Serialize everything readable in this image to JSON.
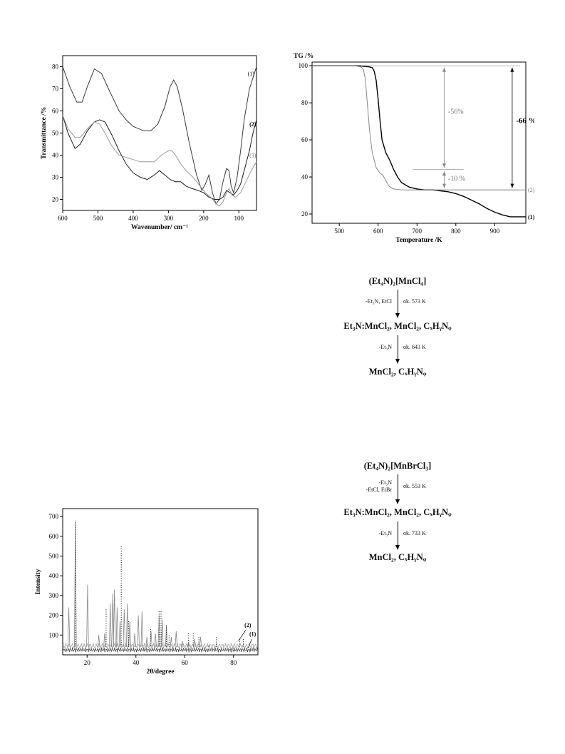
{
  "chart_data": [
    {
      "id": "ir",
      "type": "line",
      "xlabel": "Wavenumber/ cm⁻¹",
      "ylabel": "Transmittance /%",
      "xlim": [
        600,
        50
      ],
      "ylim": [
        15,
        85
      ],
      "xticks": [
        "600",
        "500",
        "400",
        "300",
        "200",
        "100"
      ],
      "yticks": [
        "20",
        "30",
        "40",
        "50",
        "60",
        "70",
        "80"
      ],
      "series": [
        {
          "name": "(1)",
          "color": "#3a3a3a",
          "x": [
            600,
            580,
            560,
            545,
            530,
            510,
            490,
            470,
            440,
            420,
            400,
            370,
            350,
            330,
            310,
            295,
            285,
            275,
            260,
            240,
            220,
            205,
            195,
            185,
            175,
            165,
            155,
            145,
            135,
            128,
            122,
            115,
            105,
            95,
            85,
            70,
            60,
            50
          ],
          "y": [
            80,
            71,
            64,
            64,
            71,
            79,
            77,
            70,
            60,
            56,
            53,
            51,
            51,
            54,
            62,
            71,
            74,
            71,
            61,
            45,
            31,
            24,
            27,
            31,
            23,
            18,
            20,
            28,
            34,
            33,
            26,
            23,
            30,
            42,
            56,
            70,
            75,
            80
          ]
        },
        {
          "name": "(2)",
          "color": "#1a1a1a",
          "x": [
            600,
            585,
            565,
            550,
            530,
            510,
            495,
            480,
            460,
            440,
            420,
            400,
            380,
            360,
            340,
            325,
            310,
            295,
            280,
            265,
            250,
            235,
            215,
            200,
            185,
            170,
            155,
            145,
            135,
            125,
            115,
            105,
            95,
            85,
            70,
            60,
            50
          ],
          "y": [
            58,
            50,
            43,
            45,
            51,
            55,
            56,
            55,
            49,
            42,
            36,
            32,
            30,
            29,
            31,
            33,
            31,
            29,
            28,
            28,
            26,
            25,
            24,
            23,
            21,
            20,
            20,
            21,
            24,
            23,
            22,
            24,
            27,
            33,
            42,
            50,
            56
          ]
        },
        {
          "name": "(3)",
          "color": "#9a9a9a",
          "x": [
            600,
            585,
            565,
            550,
            530,
            510,
            495,
            480,
            460,
            440,
            420,
            400,
            380,
            360,
            340,
            320,
            300,
            290,
            280,
            265,
            250,
            230,
            210,
            195,
            180,
            165,
            155,
            145,
            135,
            128,
            120,
            110,
            95,
            80,
            65,
            50
          ],
          "y": [
            58,
            52,
            48,
            48,
            52,
            55,
            54,
            50,
            44,
            40,
            39,
            38,
            37,
            37,
            37,
            40,
            42,
            42,
            40,
            36,
            33,
            30,
            26,
            23,
            21,
            18,
            17,
            19,
            23,
            25,
            22,
            21,
            23,
            28,
            33,
            37
          ]
        }
      ],
      "series_labels": [
        "(1)",
        "(2)",
        "(3)"
      ]
    },
    {
      "id": "tg",
      "type": "line",
      "ylabel": "TG /%",
      "xlabel": "Temperature /K",
      "xlim": [
        430,
        980
      ],
      "ylim": [
        15,
        102
      ],
      "xticks": [
        "500",
        "600",
        "700",
        "800",
        "900"
      ],
      "yticks": [
        "20",
        "40",
        "60",
        "80",
        "100"
      ],
      "series": [
        {
          "name": "(1)",
          "color": "#000000",
          "x": [
            430,
            550,
            575,
            585,
            590,
            595,
            600,
            605,
            610,
            620,
            630,
            640,
            650,
            660,
            680,
            700,
            720,
            740,
            760,
            780,
            800,
            820,
            840,
            860,
            880,
            900,
            920,
            940,
            960,
            980
          ],
          "y": [
            100,
            100,
            99.5,
            99,
            97,
            92,
            82,
            70,
            60,
            53,
            49,
            44,
            40,
            37,
            34.5,
            33.5,
            33,
            33,
            32.5,
            32,
            31,
            29.5,
            27.5,
            25.5,
            23,
            21,
            19.5,
            18.5,
            18.5,
            18.5
          ]
        },
        {
          "name": "(2)",
          "color": "#888888",
          "x": [
            430,
            540,
            555,
            562,
            567,
            572,
            578,
            585,
            595,
            605,
            612,
            620,
            628,
            640,
            660,
            690,
            720,
            760,
            800,
            850,
            900,
            950,
            980
          ],
          "y": [
            100,
            100,
            99.5,
            98,
            93,
            80,
            65,
            53,
            45,
            42,
            41,
            38,
            35,
            33.5,
            33,
            33,
            33,
            33,
            33,
            33,
            33,
            33,
            33
          ]
        }
      ],
      "series_labels": [
        "(1)",
        "(2)"
      ],
      "annotations": [
        "-56%",
        "-10 %",
        "-66 %"
      ]
    },
    {
      "id": "xrd",
      "type": "line",
      "xlabel": "2θ/degree",
      "ylabel": "Intensity",
      "xlim": [
        10,
        90
      ],
      "ylim": [
        0,
        740
      ],
      "xticks": [
        "20",
        "40",
        "60",
        "80"
      ],
      "yticks": [
        "100",
        "200",
        "300",
        "400",
        "500",
        "600",
        "700"
      ],
      "series_labels": [
        "(2)",
        "(1)"
      ],
      "peaks_gray": [
        [
          12.5,
          240
        ],
        [
          15.2,
          680
        ],
        [
          20.2,
          355
        ],
        [
          24.8,
          100
        ],
        [
          27.2,
          110
        ],
        [
          29.5,
          260
        ],
        [
          30.5,
          310
        ],
        [
          31.2,
          330
        ],
        [
          32.3,
          240
        ],
        [
          33.5,
          170
        ],
        [
          35.2,
          230
        ],
        [
          36.5,
          260
        ],
        [
          37.5,
          170
        ],
        [
          39.5,
          110
        ],
        [
          41,
          200
        ],
        [
          42.5,
          220
        ],
        [
          44.5,
          90
        ],
        [
          46.2,
          120
        ],
        [
          48,
          110
        ],
        [
          49.5,
          200
        ],
        [
          50.8,
          180
        ],
        [
          52.5,
          150
        ],
        [
          54.5,
          90
        ],
        [
          56.5,
          120
        ],
        [
          59,
          70
        ],
        [
          61.5,
          60
        ],
        [
          64,
          80
        ],
        [
          66.5,
          90
        ],
        [
          70,
          50
        ]
      ],
      "peaks_marked": [
        15.2,
        27.8,
        34.0,
        37.0,
        46.0,
        49.5,
        50.3,
        52.5,
        53.6,
        61.5,
        63.5,
        65.8,
        73.0,
        82.5,
        84.0
      ],
      "mark_heights": [
        670,
        230,
        550,
        170,
        130,
        220,
        220,
        150,
        100,
        110,
        110,
        90,
        90,
        80,
        80
      ]
    }
  ],
  "scheme1": {
    "start": "(Et₄N)₂[MnCl₄]",
    "step1_left": "-Et₃N, EtCl",
    "step1_right": "ok. 573 K",
    "mid": "Et₃N:MnCl₂, MnCl₂, CₓHᵧNᵩ",
    "step2_left": "-Et₃N",
    "step2_right": "ok. 643 K",
    "end": "MnCl₂, CₓHᵧNᵩ"
  },
  "scheme2": {
    "start": "(Et₄N)₂[MnBrCl₃]",
    "step1_left_a": "-Et₃N",
    "step1_left_b": "-EtCl, EtBr",
    "step1_right": "ok. 553 K",
    "mid": "Et₃N:MnCl₂, MnCl₂, CₓHᵧNᵩ",
    "step2_left": "-Et₃N",
    "step2_right": "ok. 733 K",
    "end": "MnCl₂, CₓHᵧNᵩ"
  }
}
